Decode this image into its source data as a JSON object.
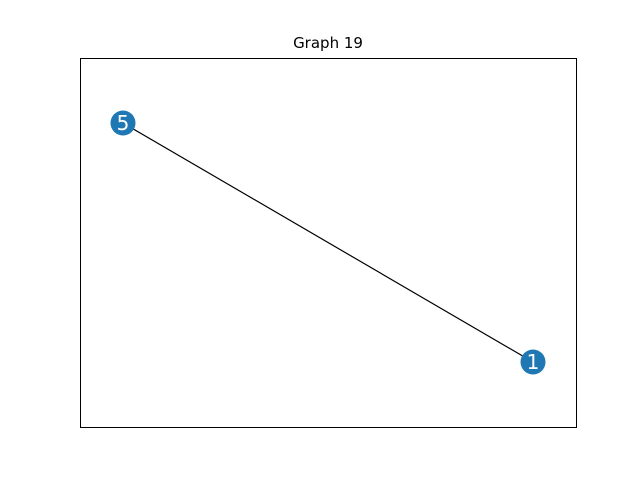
{
  "graph": {
    "title": "Graph 19",
    "node_color": "#1f77b4",
    "edge_color": "#000000",
    "nodes": [
      {
        "id": "5",
        "label": "5"
      },
      {
        "id": "1",
        "label": "1"
      }
    ],
    "edges": [
      {
        "source": "5",
        "target": "1"
      }
    ]
  }
}
